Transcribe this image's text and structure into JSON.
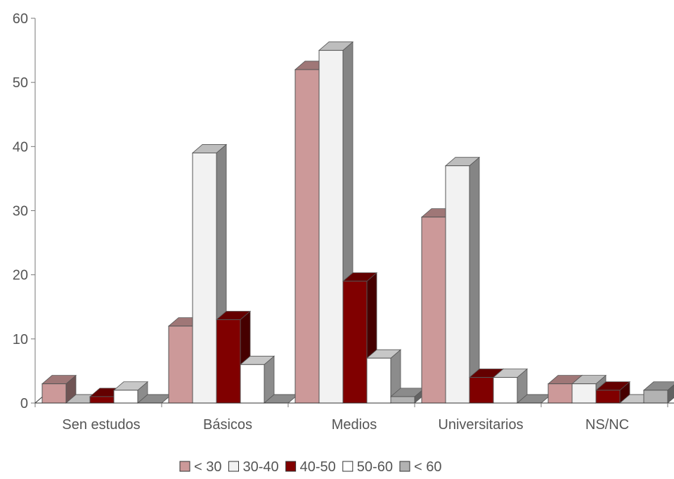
{
  "chart_data": {
    "type": "bar",
    "style": "3d-clustered",
    "categories": [
      "Sen estudos",
      "Básicos",
      "Medios",
      "Universitarios",
      "NS/NC"
    ],
    "series": [
      {
        "name": "< 30",
        "color": "#cc9999",
        "values": [
          3,
          12,
          52,
          29,
          3
        ]
      },
      {
        "name": "30-40",
        "color": "#f2f2f2",
        "values": [
          0,
          39,
          55,
          37,
          3
        ]
      },
      {
        "name": "40-50",
        "color": "#800000",
        "values": [
          1,
          13,
          19,
          4,
          2
        ]
      },
      {
        "name": "50-60",
        "color": "#ffffff",
        "values": [
          2,
          6,
          7,
          4,
          0
        ]
      },
      {
        "name": "< 60",
        "color": "#b2b2b2",
        "values": [
          0,
          0,
          1,
          0,
          2
        ]
      }
    ],
    "y_ticks": [
      "0",
      "10",
      "20",
      "30",
      "40",
      "50",
      "60"
    ],
    "ylim": [
      0,
      60
    ],
    "grid": false,
    "legend_position": "bottom"
  }
}
